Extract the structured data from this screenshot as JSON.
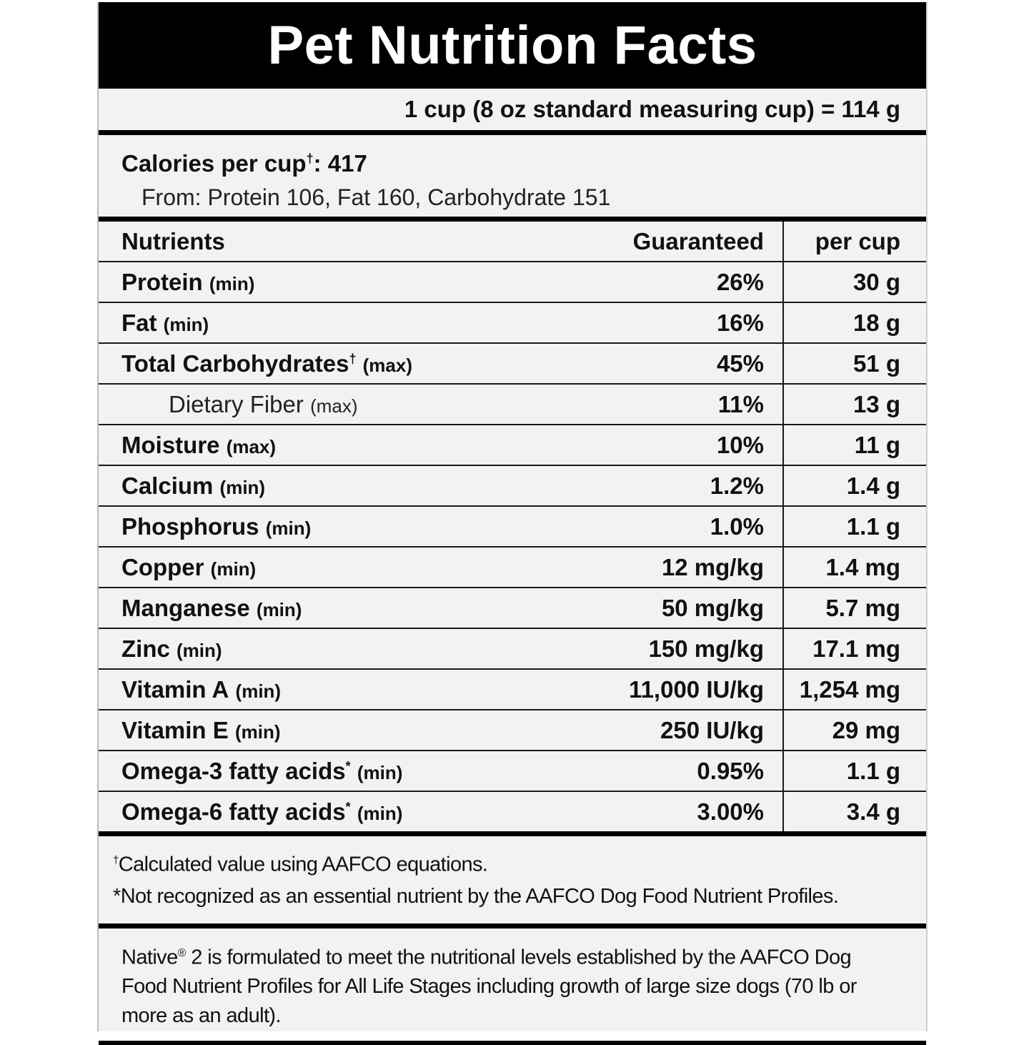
{
  "label": {
    "title": "Pet Nutrition Facts",
    "serving": "1 cup (8 oz standard measuring cup) = 114 g",
    "calories": {
      "label": "Calories per cup",
      "mark": "†",
      "sep": ": ",
      "value": "417",
      "from": "From: Protein 106, Fat 160, Carbohydrate 151"
    },
    "table": {
      "headers": [
        "Nutrients",
        "Guaranteed",
        "per cup"
      ],
      "rows": [
        {
          "name": "Protein",
          "mark": "",
          "qual": "(min)",
          "guaranteed": "26%",
          "per_cup": "30 g"
        },
        {
          "name": "Fat",
          "mark": "",
          "qual": "(min)",
          "guaranteed": "16%",
          "per_cup": "18 g"
        },
        {
          "name": "Total Carbohydrates",
          "mark": "†",
          "qual": "(max)",
          "guaranteed": "45%",
          "per_cup": "51 g"
        },
        {
          "name": "Dietary Fiber",
          "mark": "",
          "qual": "(max)",
          "guaranteed": "11%",
          "per_cup": "13 g"
        },
        {
          "name": "Moisture",
          "mark": "",
          "qual": "(max)",
          "guaranteed": "10%",
          "per_cup": "11 g"
        },
        {
          "name": "Calcium",
          "mark": "",
          "qual": "(min)",
          "guaranteed": "1.2%",
          "per_cup": "1.4 g"
        },
        {
          "name": "Phosphorus",
          "mark": "",
          "qual": "(min)",
          "guaranteed": "1.0%",
          "per_cup": "1.1 g"
        },
        {
          "name": "Copper",
          "mark": "",
          "qual": "(min)",
          "guaranteed": "12 mg/kg",
          "per_cup": "1.4 mg"
        },
        {
          "name": "Manganese",
          "mark": "",
          "qual": "(min)",
          "guaranteed": "50 mg/kg",
          "per_cup": "5.7 mg"
        },
        {
          "name": "Zinc",
          "mark": "",
          "qual": "(min)",
          "guaranteed": "150 mg/kg",
          "per_cup": "17.1 mg"
        },
        {
          "name": "Vitamin A",
          "mark": "",
          "qual": "(min)",
          "guaranteed": "11,000 IU/kg",
          "per_cup": "1,254 mg"
        },
        {
          "name": "Vitamin E",
          "mark": "",
          "qual": "(min)",
          "guaranteed": "250 IU/kg",
          "per_cup": "29 mg"
        },
        {
          "name": "Omega-3 fatty acids",
          "mark": "*",
          "qual": "(min)",
          "guaranteed": "0.95%",
          "per_cup": "1.1 g"
        },
        {
          "name": "Omega-6 fatty acids",
          "mark": "*",
          "qual": "(min)",
          "guaranteed": "3.00%",
          "per_cup": "3.4 g"
        }
      ]
    },
    "footnotes": [
      {
        "mark": "†",
        "text": "Calculated value using AAFCO equations."
      },
      {
        "mark": "*",
        "text": "Not recognized as an essential nutrient by the AAFCO Dog Food Nutrient Profiles."
      }
    ],
    "statement": {
      "brand": "Native",
      "reg": "®",
      "text": " 2 is formulated to meet the nutritional levels established by the AAFCO Dog Food Nutrient Profiles for All Life Stages including growth of large size dogs (70 lb or more as an adult)."
    }
  }
}
